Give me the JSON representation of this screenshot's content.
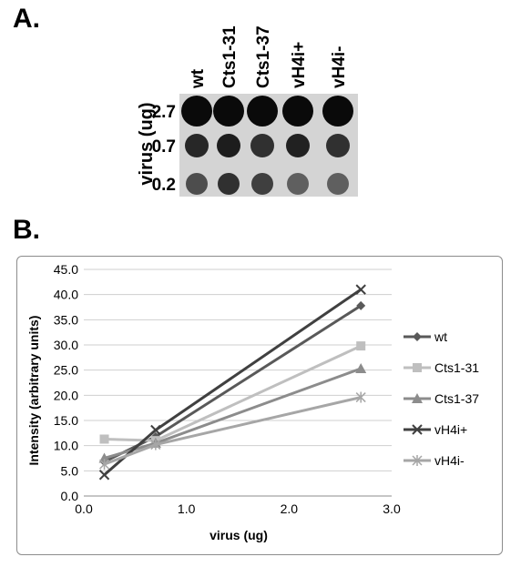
{
  "panels": {
    "a_label": "A.",
    "b_label": "B."
  },
  "blot": {
    "columns": [
      "wt",
      "Cts1-31",
      "Cts1-37",
      "vH4i+",
      "vH4i-"
    ],
    "rows": [
      "2.7",
      "0.7",
      "0.2"
    ],
    "row_axis_label": "virus (ug)",
    "spot_intensity": [
      [
        1.0,
        1.0,
        1.0,
        1.0,
        1.0
      ],
      [
        0.85,
        0.9,
        0.8,
        0.88,
        0.8
      ],
      [
        0.65,
        0.8,
        0.72,
        0.55,
        0.55
      ]
    ],
    "colors": {
      "spot": "#0a0a0a",
      "background": "#d4d4d4"
    }
  },
  "chart_data": {
    "type": "line",
    "xlabel": "virus (ug)",
    "ylabel": "Intensity (arbitrary units)",
    "xlim": [
      0,
      3.0
    ],
    "ylim": [
      0,
      45.0
    ],
    "x_ticks": [
      "0.0",
      "1.0",
      "2.0",
      "3.0"
    ],
    "y_ticks": [
      "0.0",
      "5.0",
      "10.0",
      "15.0",
      "20.0",
      "25.0",
      "30.0",
      "35.0",
      "40.0",
      "45.0"
    ],
    "grid": true,
    "legend_position": "right",
    "x": [
      0.2,
      0.7,
      2.7
    ],
    "series": [
      {
        "name": "wt",
        "values": [
          6.8,
          11.8,
          37.8
        ],
        "color": "#595959",
        "marker": "diamond"
      },
      {
        "name": "Cts1-31",
        "values": [
          11.3,
          11.0,
          29.8
        ],
        "color": "#bfbfbf",
        "marker": "square"
      },
      {
        "name": "Cts1-37",
        "values": [
          7.5,
          10.5,
          25.3
        ],
        "color": "#8c8c8c",
        "marker": "triangle"
      },
      {
        "name": "vH4i+",
        "values": [
          4.2,
          13.1,
          41.0
        ],
        "color": "#404040",
        "marker": "x"
      },
      {
        "name": "vH4i-",
        "values": [
          6.3,
          10.2,
          19.6
        ],
        "color": "#a6a6a6",
        "marker": "star"
      }
    ]
  }
}
